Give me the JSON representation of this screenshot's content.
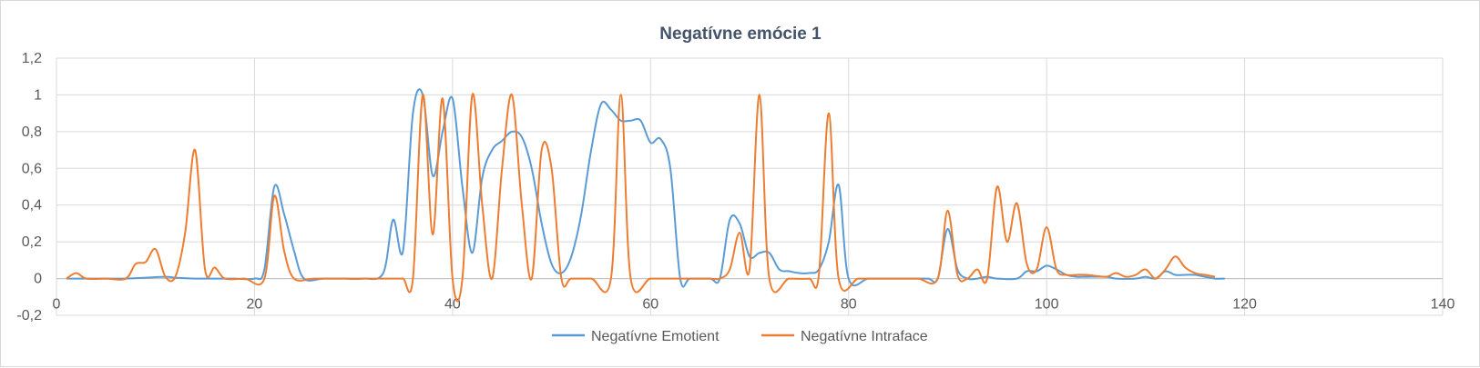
{
  "chart_data": {
    "type": "line",
    "title": "Negatívne emócie 1",
    "xlabel": "",
    "ylabel": "",
    "xlim": [
      0,
      140
    ],
    "ylim": [
      -0.2,
      1.2
    ],
    "x_ticks": [
      "0",
      "20",
      "40",
      "60",
      "80",
      "100",
      "120",
      "140"
    ],
    "y_ticks": [
      "-0,2",
      "0",
      "0,2",
      "0,4",
      "0,6",
      "0,8",
      "1",
      "1,2"
    ],
    "grid": true,
    "legend_position": "bottom",
    "series": [
      {
        "name": "Negatívne Emotient",
        "color": "#5b9bd5",
        "points": [
          [
            1,
            0
          ],
          [
            3,
            0
          ],
          [
            5,
            0
          ],
          [
            7,
            0
          ],
          [
            9,
            0.005
          ],
          [
            11,
            0.01
          ],
          [
            12,
            0.005
          ],
          [
            14,
            0
          ],
          [
            16,
            0
          ],
          [
            18,
            0
          ],
          [
            20,
            0
          ],
          [
            21,
            0.05
          ],
          [
            22,
            0.5
          ],
          [
            23,
            0.35
          ],
          [
            24,
            0.15
          ],
          [
            25,
            0
          ],
          [
            27,
            0
          ],
          [
            29,
            0
          ],
          [
            31,
            0
          ],
          [
            33,
            0.03
          ],
          [
            34,
            0.32
          ],
          [
            35,
            0.15
          ],
          [
            36,
            0.9
          ],
          [
            37,
            1
          ],
          [
            38,
            0.56
          ],
          [
            39,
            0.8
          ],
          [
            40,
            0.98
          ],
          [
            41,
            0.5
          ],
          [
            42,
            0.14
          ],
          [
            43,
            0.55
          ],
          [
            44,
            0.7
          ],
          [
            45,
            0.75
          ],
          [
            46,
            0.8
          ],
          [
            47,
            0.77
          ],
          [
            48,
            0.6
          ],
          [
            49,
            0.3
          ],
          [
            50,
            0.08
          ],
          [
            51,
            0.03
          ],
          [
            52,
            0.12
          ],
          [
            53,
            0.35
          ],
          [
            54,
            0.7
          ],
          [
            55,
            0.95
          ],
          [
            56,
            0.92
          ],
          [
            57,
            0.86
          ],
          [
            58,
            0.86
          ],
          [
            59,
            0.86
          ],
          [
            60,
            0.74
          ],
          [
            61,
            0.76
          ],
          [
            62,
            0.6
          ],
          [
            63,
            0
          ],
          [
            64,
            0
          ],
          [
            66,
            0
          ],
          [
            67,
            0
          ],
          [
            68,
            0.32
          ],
          [
            69,
            0.3
          ],
          [
            70,
            0.12
          ],
          [
            71,
            0.14
          ],
          [
            72,
            0.14
          ],
          [
            73,
            0.05
          ],
          [
            74,
            0.04
          ],
          [
            75,
            0.03
          ],
          [
            76,
            0.03
          ],
          [
            77,
            0.05
          ],
          [
            78,
            0.2
          ],
          [
            79,
            0.51
          ],
          [
            80,
            0
          ],
          [
            82,
            0
          ],
          [
            84,
            0
          ],
          [
            86,
            0
          ],
          [
            88,
            0
          ],
          [
            89,
            0
          ],
          [
            90,
            0.27
          ],
          [
            91,
            0.05
          ],
          [
            92,
            0
          ],
          [
            93,
            0
          ],
          [
            94,
            0.01
          ],
          [
            95,
            0
          ],
          [
            97,
            0
          ],
          [
            98,
            0.04
          ],
          [
            99,
            0.04
          ],
          [
            100,
            0.07
          ],
          [
            101,
            0.05
          ],
          [
            102,
            0.02
          ],
          [
            103,
            0.01
          ],
          [
            104,
            0.01
          ],
          [
            106,
            0.01
          ],
          [
            107,
            0
          ],
          [
            109,
            0
          ],
          [
            110,
            0.01
          ],
          [
            111,
            0
          ],
          [
            112,
            0.04
          ],
          [
            113,
            0.02
          ],
          [
            114,
            0.02
          ],
          [
            115,
            0.02
          ],
          [
            116,
            0.01
          ],
          [
            117,
            0
          ],
          [
            118,
            0
          ]
        ]
      },
      {
        "name": "Negatívne Intraface",
        "color": "#ed7d31",
        "points": [
          [
            1,
            0
          ],
          [
            2,
            0.03
          ],
          [
            3,
            0
          ],
          [
            5,
            0
          ],
          [
            7,
            0
          ],
          [
            8,
            0.08
          ],
          [
            9,
            0.09
          ],
          [
            10,
            0.16
          ],
          [
            11,
            0.01
          ],
          [
            12,
            0.01
          ],
          [
            13,
            0.25
          ],
          [
            14,
            0.7
          ],
          [
            15,
            0.05
          ],
          [
            16,
            0.06
          ],
          [
            17,
            0
          ],
          [
            19,
            0
          ],
          [
            21,
            0
          ],
          [
            22,
            0.45
          ],
          [
            23,
            0.15
          ],
          [
            24,
            0
          ],
          [
            26,
            0
          ],
          [
            28,
            0
          ],
          [
            30,
            0
          ],
          [
            32,
            0
          ],
          [
            34,
            0
          ],
          [
            35,
            0
          ],
          [
            36,
            0
          ],
          [
            37,
            1
          ],
          [
            38,
            0.24
          ],
          [
            39,
            0.98
          ],
          [
            40,
            0
          ],
          [
            41,
            0
          ],
          [
            42,
            1
          ],
          [
            43,
            0.4
          ],
          [
            44,
            0
          ],
          [
            45,
            0.6
          ],
          [
            46,
            1
          ],
          [
            47,
            0.4
          ],
          [
            48,
            0
          ],
          [
            49,
            0.7
          ],
          [
            50,
            0.6
          ],
          [
            51,
            0
          ],
          [
            52,
            0
          ],
          [
            54,
            0
          ],
          [
            56,
            0
          ],
          [
            57,
            1
          ],
          [
            58,
            0
          ],
          [
            60,
            0
          ],
          [
            62,
            0
          ],
          [
            64,
            0
          ],
          [
            66,
            0
          ],
          [
            67,
            0
          ],
          [
            68,
            0.05
          ],
          [
            69,
            0.25
          ],
          [
            70,
            0.05
          ],
          [
            71,
            1
          ],
          [
            72,
            0
          ],
          [
            74,
            0
          ],
          [
            76,
            0
          ],
          [
            77,
            0.02
          ],
          [
            78,
            0.9
          ],
          [
            79,
            0
          ],
          [
            81,
            0
          ],
          [
            83,
            0
          ],
          [
            85,
            0
          ],
          [
            87,
            0
          ],
          [
            89,
            0
          ],
          [
            90,
            0.37
          ],
          [
            91,
            0.02
          ],
          [
            92,
            0
          ],
          [
            93,
            0.05
          ],
          [
            94,
            0
          ],
          [
            95,
            0.5
          ],
          [
            96,
            0.2
          ],
          [
            97,
            0.41
          ],
          [
            98,
            0.08
          ],
          [
            99,
            0.05
          ],
          [
            100,
            0.28
          ],
          [
            101,
            0.05
          ],
          [
            102,
            0.02
          ],
          [
            103,
            0.02
          ],
          [
            104,
            0.02
          ],
          [
            106,
            0.01
          ],
          [
            107,
            0.03
          ],
          [
            108,
            0.01
          ],
          [
            109,
            0.02
          ],
          [
            110,
            0.05
          ],
          [
            111,
            0
          ],
          [
            112,
            0.05
          ],
          [
            113,
            0.12
          ],
          [
            114,
            0.06
          ],
          [
            115,
            0.03
          ],
          [
            116,
            0.02
          ],
          [
            117,
            0.01
          ]
        ]
      }
    ]
  }
}
